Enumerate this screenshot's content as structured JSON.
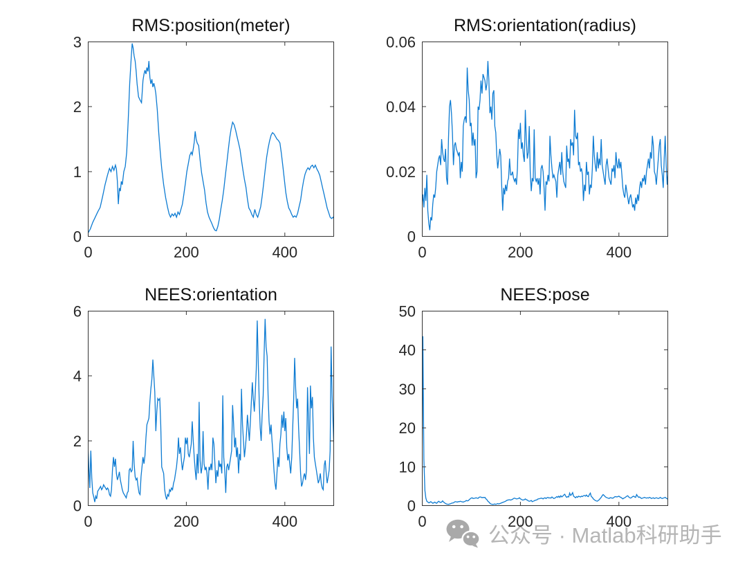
{
  "figure": {
    "background": "#ffffff"
  },
  "style": {
    "line_color": "#0d7bd2",
    "axis_color": "#333333",
    "tick_label_color": "#262626",
    "title_color": "#111111",
    "watermark_text_color": "#b5b5b5",
    "watermark_icon_color": "#a9a9a9"
  },
  "watermark": {
    "text": "公众号 · Matlab科研助手",
    "icon": "wechat-icon"
  },
  "chart_data": [
    {
      "id": "rms-position",
      "type": "line",
      "title": "RMS:position(meter)",
      "xlabel": "",
      "ylabel": "",
      "xlim": [
        0,
        500
      ],
      "ylim": [
        0,
        3
      ],
      "xticks": [
        0,
        200,
        400
      ],
      "xtick_labels": [
        "0",
        "200",
        "400"
      ],
      "yticks": [
        0,
        1,
        2,
        3
      ],
      "ytick_labels": [
        "0",
        "1",
        "2",
        "3"
      ],
      "grid": false,
      "legend": null,
      "x": [
        0,
        5,
        10,
        15,
        20,
        25,
        30,
        35,
        40,
        44,
        47,
        50,
        53,
        56,
        58,
        60,
        62,
        64,
        66,
        68,
        70,
        73,
        76,
        79,
        82,
        85,
        88,
        90,
        92,
        94,
        96,
        98,
        100,
        103,
        106,
        109,
        112,
        114,
        116,
        118,
        120,
        122,
        124,
        126,
        128,
        130,
        132,
        134,
        136,
        138,
        141,
        144,
        147,
        150,
        154,
        158,
        162,
        165,
        168,
        171,
        174,
        177,
        180,
        183,
        186,
        189,
        192,
        195,
        198,
        201,
        204,
        207,
        210,
        212,
        214,
        216,
        218,
        220,
        222,
        225,
        228,
        231,
        234,
        237,
        240,
        243,
        246,
        249,
        252,
        255,
        258,
        261,
        264,
        267,
        270,
        273,
        276,
        279,
        282,
        285,
        288,
        291,
        294,
        297,
        300,
        303,
        306,
        309,
        312,
        315,
        318,
        321,
        324,
        327,
        330,
        333,
        336,
        339,
        342,
        345,
        348,
        351,
        354,
        357,
        360,
        363,
        366,
        369,
        372,
        375,
        378,
        381,
        384,
        387,
        390,
        393,
        396,
        399,
        402,
        405,
        408,
        411,
        414,
        417,
        420,
        423,
        426,
        429,
        432,
        435,
        438,
        441,
        444,
        447,
        450,
        453,
        456,
        459,
        462,
        465,
        468,
        471,
        474,
        477,
        480,
        483,
        486,
        489,
        492,
        495,
        498,
        500
      ],
      "y": [
        0.05,
        0.12,
        0.22,
        0.3,
        0.38,
        0.45,
        0.62,
        0.8,
        0.95,
        1.05,
        1.0,
        1.08,
        1.02,
        1.1,
        1.04,
        0.85,
        0.5,
        0.75,
        0.7,
        0.85,
        0.8,
        1.0,
        1.08,
        1.3,
        1.8,
        2.35,
        2.75,
        2.97,
        2.9,
        2.78,
        2.7,
        2.55,
        2.35,
        2.15,
        2.1,
        2.06,
        2.4,
        2.5,
        2.56,
        2.5,
        2.6,
        2.54,
        2.7,
        2.45,
        2.35,
        2.42,
        2.3,
        2.36,
        2.3,
        2.2,
        1.95,
        1.6,
        1.3,
        1.05,
        0.8,
        0.6,
        0.45,
        0.35,
        0.3,
        0.35,
        0.32,
        0.36,
        0.3,
        0.38,
        0.34,
        0.42,
        0.5,
        0.65,
        0.82,
        1.0,
        1.12,
        1.25,
        1.3,
        1.26,
        1.35,
        1.45,
        1.62,
        1.5,
        1.44,
        1.4,
        1.18,
        0.98,
        0.85,
        0.72,
        0.52,
        0.38,
        0.3,
        0.25,
        0.2,
        0.14,
        0.1,
        0.09,
        0.16,
        0.27,
        0.42,
        0.56,
        0.72,
        0.92,
        1.12,
        1.32,
        1.52,
        1.66,
        1.76,
        1.72,
        1.64,
        1.54,
        1.44,
        1.34,
        1.18,
        1.02,
        0.88,
        0.76,
        0.58,
        0.44,
        0.4,
        0.34,
        0.3,
        0.42,
        0.34,
        0.3,
        0.38,
        0.46,
        0.62,
        0.82,
        1.02,
        1.22,
        1.36,
        1.47,
        1.56,
        1.6,
        1.58,
        1.54,
        1.5,
        1.48,
        1.44,
        1.28,
        1.08,
        0.88,
        0.68,
        0.54,
        0.44,
        0.4,
        0.34,
        0.3,
        0.32,
        0.3,
        0.36,
        0.46,
        0.56,
        0.72,
        0.86,
        0.96,
        1.02,
        1.06,
        1.03,
        1.08,
        1.1,
        1.06,
        1.1,
        1.04,
        1.0,
        0.94,
        0.84,
        0.74,
        0.64,
        0.54,
        0.44,
        0.37,
        0.3,
        0.28,
        0.3,
        0.27
      ]
    },
    {
      "id": "rms-orientation",
      "type": "line",
      "title": "RMS:orientation(radius)",
      "xlabel": "",
      "ylabel": "",
      "xlim": [
        0,
        500
      ],
      "ylim": [
        0,
        0.06
      ],
      "xticks": [
        0,
        200,
        400
      ],
      "xtick_labels": [
        "0",
        "200",
        "400"
      ],
      "yticks": [
        0,
        0.02,
        0.04,
        0.06
      ],
      "ytick_labels": [
        "0",
        "0.02",
        "0.04",
        "0.06"
      ],
      "grid": false,
      "legend": null,
      "x0": 0,
      "dx": 2,
      "y": [
        0.01,
        0.013,
        0.009,
        0.015,
        0.011,
        0.019,
        0.008,
        0.004,
        0.002,
        0.006,
        0.005,
        0.01,
        0.013,
        0.012,
        0.015,
        0.02,
        0.022,
        0.024,
        0.025,
        0.022,
        0.03,
        0.026,
        0.024,
        0.023,
        0.027,
        0.018,
        0.016,
        0.03,
        0.04,
        0.042,
        0.038,
        0.032,
        0.022,
        0.028,
        0.029,
        0.027,
        0.026,
        0.025,
        0.026,
        0.018,
        0.023,
        0.02,
        0.034,
        0.036,
        0.037,
        0.035,
        0.052,
        0.045,
        0.042,
        0.034,
        0.035,
        0.028,
        0.032,
        0.028,
        0.03,
        0.018,
        0.02,
        0.04,
        0.039,
        0.042,
        0.048,
        0.044,
        0.05,
        0.049,
        0.048,
        0.045,
        0.047,
        0.054,
        0.048,
        0.038,
        0.04,
        0.036,
        0.044,
        0.045,
        0.034,
        0.032,
        0.025,
        0.021,
        0.024,
        0.027,
        0.025,
        0.016,
        0.008,
        0.015,
        0.013,
        0.016,
        0.014,
        0.017,
        0.018,
        0.024,
        0.019,
        0.019,
        0.02,
        0.018,
        0.017,
        0.018,
        0.016,
        0.021,
        0.033,
        0.03,
        0.035,
        0.027,
        0.029,
        0.025,
        0.023,
        0.039,
        0.03,
        0.024,
        0.026,
        0.034,
        0.02,
        0.014,
        0.018,
        0.017,
        0.033,
        0.018,
        0.017,
        0.018,
        0.016,
        0.018,
        0.013,
        0.021,
        0.022,
        0.02,
        0.015,
        0.008,
        0.017,
        0.016,
        0.019,
        0.017,
        0.031,
        0.025,
        0.021,
        0.018,
        0.019,
        0.018,
        0.017,
        0.012,
        0.019,
        0.021,
        0.023,
        0.019,
        0.026,
        0.02,
        0.017,
        0.016,
        0.015,
        0.028,
        0.023,
        0.024,
        0.021,
        0.03,
        0.028,
        0.029,
        0.025,
        0.039,
        0.031,
        0.03,
        0.032,
        0.022,
        0.023,
        0.02,
        0.021,
        0.019,
        0.011,
        0.016,
        0.014,
        0.023,
        0.019,
        0.02,
        0.013,
        0.016,
        0.015,
        0.021,
        0.031,
        0.025,
        0.022,
        0.02,
        0.026,
        0.021,
        0.024,
        0.022,
        0.03,
        0.022,
        0.02,
        0.018,
        0.016,
        0.022,
        0.024,
        0.021,
        0.018,
        0.017,
        0.016,
        0.021,
        0.02,
        0.022,
        0.018,
        0.026,
        0.022,
        0.021,
        0.024,
        0.021,
        0.023,
        0.019,
        0.015,
        0.013,
        0.012,
        0.016,
        0.014,
        0.012,
        0.01,
        0.012,
        0.013,
        0.011,
        0.009,
        0.01,
        0.008,
        0.012,
        0.01,
        0.013,
        0.011,
        0.015,
        0.017,
        0.015,
        0.018,
        0.017,
        0.019,
        0.016,
        0.02,
        0.022,
        0.024,
        0.021,
        0.026,
        0.024,
        0.031,
        0.028,
        0.02,
        0.019,
        0.016,
        0.02,
        0.024,
        0.028,
        0.03,
        0.022,
        0.019,
        0.015,
        0.024,
        0.031,
        0.022,
        0.016,
        0.02
      ]
    },
    {
      "id": "nees-orientation",
      "type": "line",
      "title": "NEES:orientation",
      "xlabel": "",
      "ylabel": "",
      "xlim": [
        0,
        500
      ],
      "ylim": [
        0,
        6
      ],
      "xticks": [
        0,
        200,
        400
      ],
      "xtick_labels": [
        "0",
        "200",
        "400"
      ],
      "yticks": [
        0,
        2,
        4,
        6
      ],
      "ytick_labels": [
        "0",
        "2",
        "4",
        "6"
      ],
      "grid": false,
      "legend": null,
      "x0": 0,
      "dx": 2,
      "y": [
        1.9,
        1.2,
        0.55,
        1.7,
        0.85,
        0.4,
        0.28,
        0.12,
        0.3,
        0.22,
        0.45,
        0.5,
        0.55,
        0.6,
        0.5,
        0.55,
        0.65,
        0.6,
        0.55,
        0.5,
        0.55,
        0.5,
        0.35,
        0.3,
        0.5,
        1.1,
        1.5,
        1.2,
        1.45,
        1.0,
        0.8,
        0.9,
        1.05,
        0.8,
        0.65,
        0.5,
        0.4,
        0.35,
        0.3,
        0.25,
        0.4,
        0.45,
        1.1,
        1.15,
        1.05,
        1.1,
        2.0,
        1.3,
        0.9,
        0.8,
        0.85,
        0.6,
        0.4,
        0.35,
        0.9,
        1.2,
        1.5,
        1.3,
        1.55,
        2.1,
        2.5,
        2.6,
        2.7,
        3.2,
        3.6,
        3.9,
        4.5,
        4.0,
        3.5,
        2.3,
        2.9,
        3.3,
        3.25,
        3.3,
        2.5,
        1.2,
        1.1,
        1.0,
        0.5,
        0.3,
        0.2,
        0.35,
        0.3,
        0.5,
        0.45,
        0.55,
        0.5,
        0.7,
        0.8,
        1.0,
        1.2,
        1.5,
        2.1,
        1.6,
        1.8,
        1.4,
        1.1,
        1.3,
        1.5,
        2.1,
        1.9,
        2.1,
        1.6,
        1.5,
        1.7,
        1.9,
        2.6,
        2.0,
        1.5,
        1.1,
        0.8,
        1.6,
        1.0,
        3.2,
        1.4,
        1.0,
        1.2,
        2.3,
        1.3,
        1.1,
        1.2,
        1.0,
        0.5,
        1.2,
        1.1,
        1.3,
        1.1,
        2.1,
        1.9,
        1.3,
        0.7,
        1.1,
        0.9,
        1.4,
        1.2,
        1.3,
        1.0,
        3.4,
        1.5,
        1.1,
        0.4,
        1.2,
        1.3,
        1.1,
        1.3,
        1.5,
        1.7,
        3.1,
        2.5,
        1.8,
        2.1,
        1.5,
        1.8,
        1.0,
        1.6,
        1.4,
        3.6,
        2.5,
        2.0,
        1.5,
        1.8,
        2.2,
        2.8,
        2.4,
        2.0,
        2.6,
        3.2,
        3.8,
        3.3,
        2.9,
        3.5,
        4.2,
        5.7,
        4.4,
        3.2,
        2.4,
        2.0,
        2.8,
        3.4,
        4.7,
        5.75,
        4.9,
        4.6,
        3.4,
        2.6,
        2.2,
        2.5,
        2.0,
        1.6,
        1.1,
        0.7,
        0.5,
        1.0,
        1.5,
        1.2,
        1.9,
        2.2,
        2.8,
        2.4,
        2.9,
        2.3,
        2.7,
        1.8,
        1.4,
        1.6,
        1.3,
        1.0,
        1.5,
        2.4,
        3.3,
        4.55,
        3.6,
        3.0,
        3.3,
        2.4,
        1.7,
        1.0,
        0.6,
        0.7,
        0.9,
        1.0,
        0.8,
        1.1,
        3.65,
        2.6,
        1.6,
        3.7,
        3.0,
        3.35,
        2.1,
        1.5,
        1.3,
        1.1,
        0.9,
        0.7,
        0.8,
        1.0,
        0.7,
        0.55,
        0.5,
        1.25,
        1.4,
        1.0,
        0.7,
        0.9,
        1.1,
        1.7,
        4.9,
        3.4,
        2.5,
        1.7
      ]
    },
    {
      "id": "nees-pose",
      "type": "line",
      "title": "NEES:pose",
      "xlabel": "",
      "ylabel": "",
      "xlim": [
        0,
        500
      ],
      "ylim": [
        0,
        50
      ],
      "xticks": [
        0,
        200,
        400
      ],
      "xtick_labels": [
        "0",
        "200",
        "400"
      ],
      "yticks": [
        0,
        10,
        20,
        30,
        40,
        50
      ],
      "ytick_labels": [
        "0",
        "10",
        "20",
        "30",
        "40",
        "50"
      ],
      "grid": false,
      "legend": null,
      "x0": 0,
      "dx": 2,
      "y": [
        5.0,
        43.5,
        12.0,
        4.0,
        2.0,
        1.2,
        1.0,
        0.8,
        0.9,
        1.1,
        0.9,
        0.7,
        0.8,
        1.0,
        0.8,
        0.7,
        1.0,
        1.2,
        1.0,
        0.9,
        1.0,
        1.3,
        1.0,
        0.8,
        0.6,
        0.5,
        0.45,
        0.4,
        0.5,
        0.55,
        0.7,
        0.75,
        0.8,
        1.0,
        1.1,
        1.05,
        1.0,
        1.1,
        1.1,
        1.2,
        1.1,
        1.05,
        1.0,
        1.1,
        1.2,
        1.4,
        1.3,
        1.35,
        1.6,
        1.8,
        2.0,
        2.1,
        1.9,
        1.95,
        2.0,
        2.1,
        2.0,
        1.95,
        2.2,
        2.3,
        2.25,
        2.1,
        2.2,
        2.15,
        2.2,
        1.8,
        1.6,
        1.2,
        1.0,
        0.7,
        0.5,
        0.45,
        0.4,
        0.45,
        0.5,
        0.4,
        0.5,
        0.6,
        0.5,
        0.6,
        0.7,
        0.8,
        0.9,
        1.0,
        1.1,
        1.2,
        1.4,
        1.5,
        1.55,
        1.6,
        1.5,
        1.6,
        1.7,
        1.9,
        2.0,
        1.9,
        1.8,
        1.85,
        1.9,
        2.1,
        1.8,
        1.7,
        1.5,
        1.55,
        1.6,
        1.8,
        1.6,
        1.5,
        1.3,
        1.2,
        1.25,
        1.4,
        1.1,
        1.2,
        1.3,
        1.45,
        1.5,
        1.6,
        1.8,
        1.85,
        1.9,
        2.0,
        1.95,
        1.8,
        2.0,
        2.1,
        1.9,
        2.1,
        2.2,
        2.0,
        2.1,
        2.0,
        2.3,
        2.1,
        1.9,
        2.0,
        2.2,
        2.4,
        2.2,
        2.5,
        2.2,
        2.6,
        2.3,
        2.5,
        2.8,
        3.0,
        2.5,
        2.2,
        2.4,
        2.3,
        3.3,
        2.7,
        2.9,
        3.4,
        2.5,
        2.3,
        2.1,
        2.4,
        2.2,
        2.5,
        2.4,
        2.3,
        2.5,
        2.4,
        2.6,
        2.7,
        2.5,
        2.8,
        2.5,
        2.4,
        2.9,
        3.3,
        2.4,
        2.2,
        1.8,
        1.6,
        1.4,
        1.3,
        1.2,
        1.4,
        1.6,
        1.9,
        2.2,
        2.6,
        2.9,
        2.7,
        2.4,
        2.2,
        2.1,
        2.0,
        1.9,
        2.1,
        2.1,
        2.0,
        2.0,
        2.2,
        2.4,
        2.35,
        2.3,
        2.4,
        2.5,
        2.3,
        2.2,
        2.0,
        1.8,
        2.0,
        2.1,
        2.3,
        2.5,
        2.6,
        2.3,
        2.1,
        2.0,
        2.2,
        2.4,
        2.5,
        2.3,
        2.2,
        2.9,
        2.5,
        2.2,
        2.3,
        2.1,
        1.9,
        2.0,
        2.1,
        2.2,
        2.1,
        2.0,
        2.1,
        2.0,
        2.2,
        2.1,
        1.9,
        2.0,
        2.1,
        1.9,
        2.0,
        2.1,
        2.0,
        1.9,
        2.0,
        2.2,
        2.0,
        1.9,
        2.0,
        2.1,
        2.2,
        2.0,
        1.8,
        1.9
      ]
    }
  ]
}
